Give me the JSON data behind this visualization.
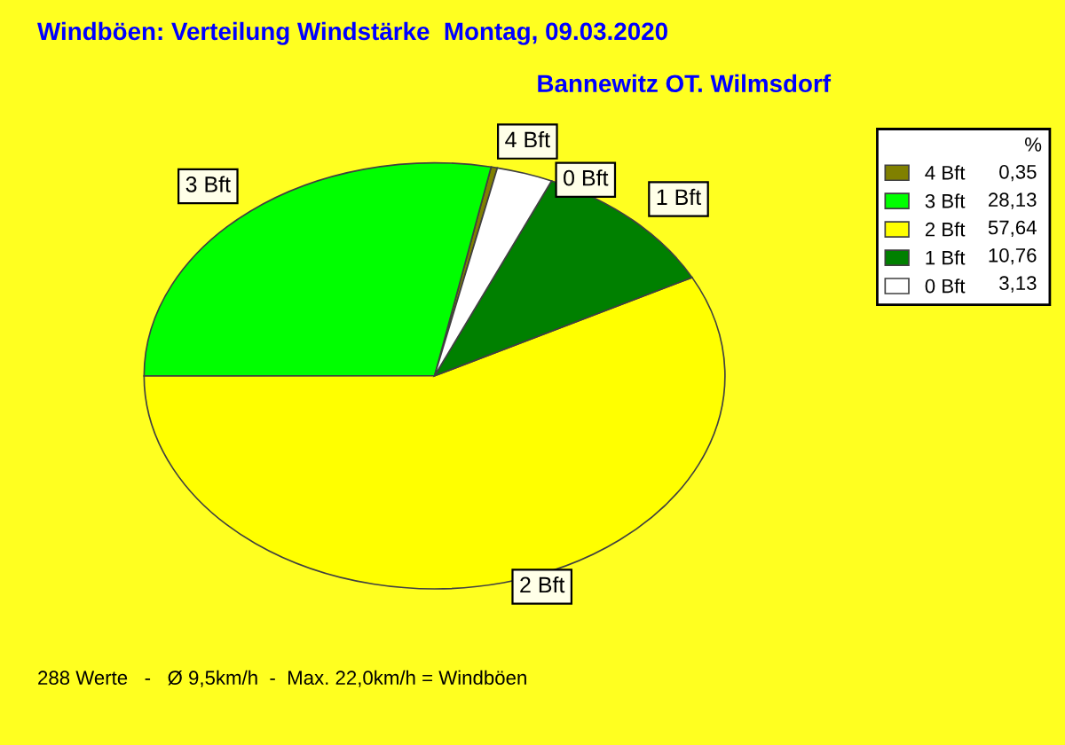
{
  "chart_data": {
    "type": "pie",
    "title": "Windböen: Verteilung Windstärke  Montag, 09.03.2020",
    "subtitle": "Bannewitz OT. Wilmsdorf",
    "categories": [
      "4 Bft",
      "3 Bft",
      "2 Bft",
      "1 Bft",
      "0 Bft"
    ],
    "values": [
      0.35,
      28.13,
      57.64,
      10.76,
      3.13
    ],
    "value_labels": [
      "0,35",
      "28,13",
      "57,64",
      "10,76",
      "3,13"
    ],
    "colors": [
      "#808000",
      "#00ff00",
      "#ffff00",
      "#008000",
      "#ffffff"
    ],
    "legend": "top right",
    "legend_title": "%",
    "annotations": [
      "288 Werte   -   Ø 9,5km/h  -  Max. 22,0km/h = Windböen"
    ]
  }
}
